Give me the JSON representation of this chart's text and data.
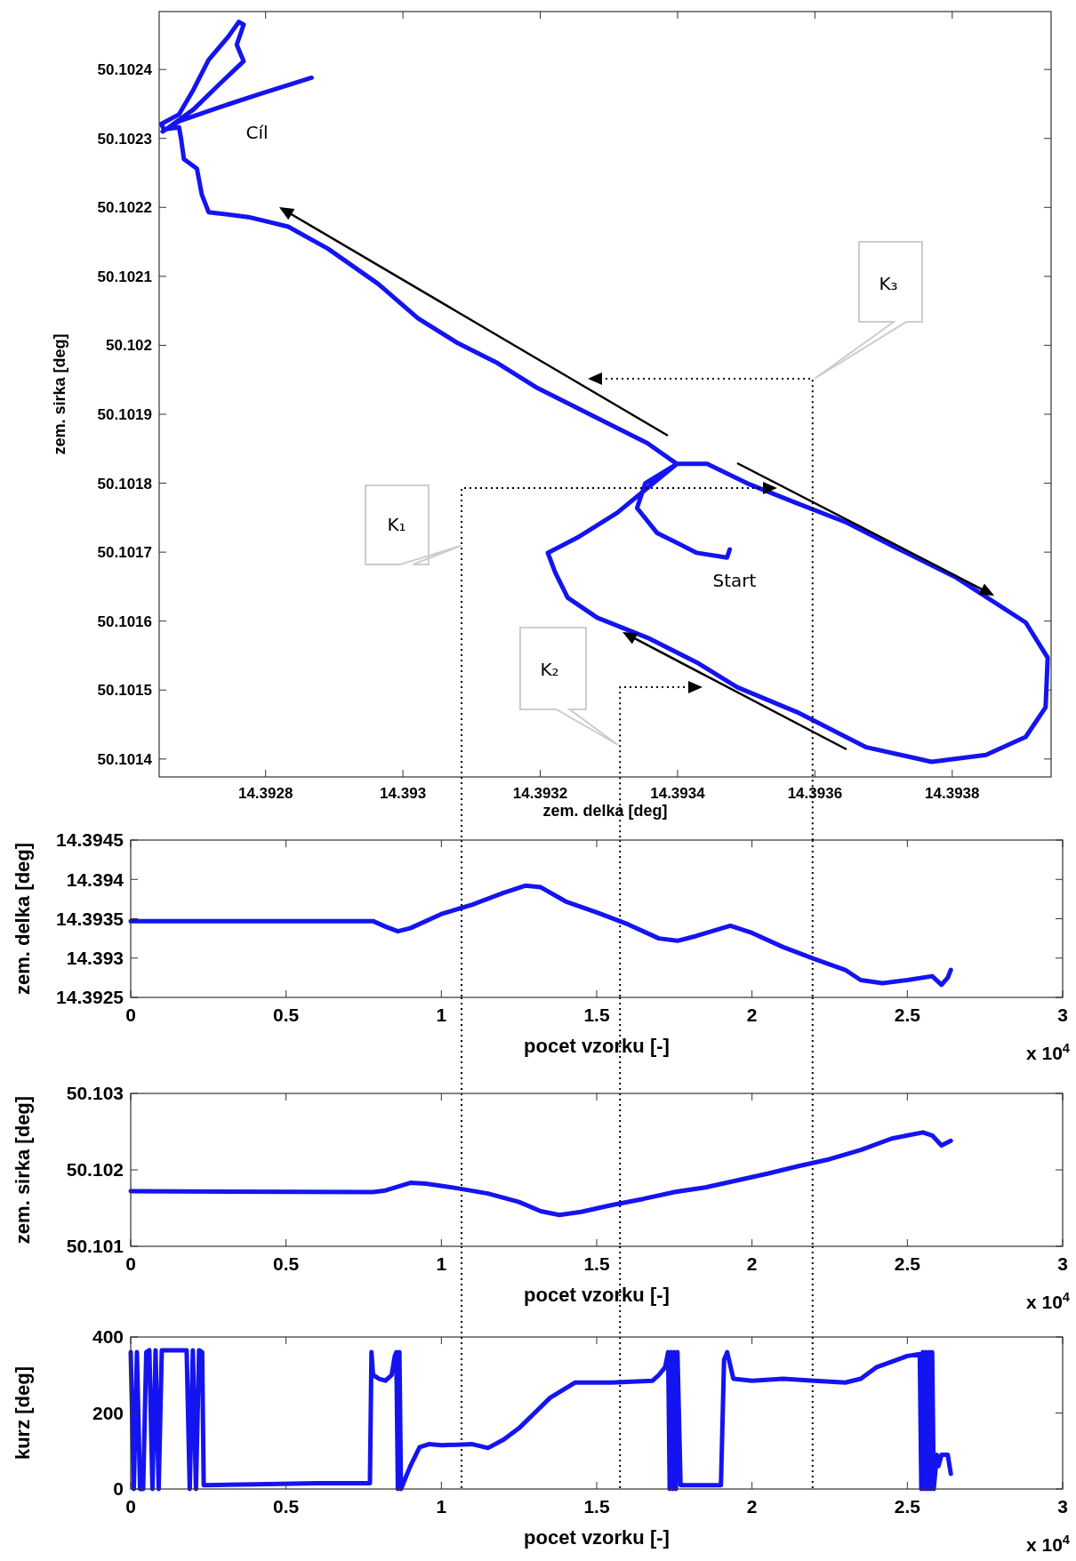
{
  "chart_data": [
    {
      "type": "line",
      "xlabel": "zem. delka [deg]",
      "ylabel": "zem. sirka [deg]",
      "xlim": [
        14.392645,
        14.393944
      ],
      "ylim": [
        50.101374,
        50.102484
      ],
      "xticks": [
        14.3928,
        14.393,
        14.3932,
        14.3934,
        14.3936,
        14.3938
      ],
      "yticks": [
        50.1014,
        50.1015,
        50.1016,
        50.1017,
        50.1018,
        50.1019,
        50.102,
        50.1021,
        50.1022,
        50.1023,
        50.1024
      ],
      "series": [
        {
          "color": "#1414f0",
          "x": [
            14.393476,
            14.393472,
            14.393428,
            14.39337,
            14.393341,
            14.393353,
            14.393399,
            14.393443,
            14.393501,
            14.393574,
            14.393646,
            14.393719,
            14.393806,
            14.393907,
            14.393939,
            14.393936,
            14.393907,
            14.393849,
            14.39377,
            14.393675,
            14.393574,
            14.393487,
            14.393428,
            14.393356,
            14.393283,
            14.39324,
            14.393222,
            14.393211,
            14.393254,
            14.393312,
            14.393356,
            14.393399,
            14.393356,
            14.393312,
            14.393254,
            14.393196,
            14.393138,
            14.39308,
            14.393022,
            14.392964,
            14.392891,
            14.392833,
            14.392775,
            14.392717,
            14.392707,
            14.3927,
            14.392681,
            14.392677,
            14.392674,
            14.392652,
            14.392648,
            14.392674,
            14.392695,
            14.392717,
            14.392746,
            14.392761,
            14.392768,
            14.392758,
            14.392768,
            14.392732,
            14.392695,
            14.392659,
            14.39265,
            14.392674,
            14.392732,
            14.39279,
            14.392867
          ],
          "values": [
            50.101704,
            50.101692,
            50.101699,
            50.101728,
            50.101764,
            50.1018,
            50.101828,
            50.101828,
            50.1018,
            50.101771,
            50.101743,
            50.101706,
            50.101663,
            50.101598,
            50.101547,
            50.101475,
            50.101432,
            50.101406,
            50.101396,
            50.101417,
            50.101468,
            50.101504,
            50.10154,
            50.101576,
            50.101605,
            50.101634,
            50.10167,
            50.101699,
            50.101721,
            50.101757,
            50.101793,
            50.101828,
            50.101858,
            50.10188,
            50.101909,
            50.101938,
            50.101974,
            50.102003,
            50.102039,
            50.102089,
            50.10214,
            50.102172,
            50.102186,
            50.102193,
            50.102219,
            50.102256,
            50.10227,
            50.102299,
            50.102316,
            50.102313,
            50.102321,
            50.102335,
            50.102371,
            50.102414,
            50.102448,
            50.102469,
            50.102465,
            50.102436,
            50.102412,
            50.102378,
            50.102342,
            50.102316,
            50.10231,
            50.102325,
            50.102345,
            50.102364,
            50.102388
          ]
        }
      ],
      "annotations": [
        "Cíl",
        "Start",
        "K₁",
        "K₂",
        "K₃"
      ]
    },
    {
      "type": "line",
      "xlabel": "pocet vzorku [-]",
      "ylabel": "zem. delka [deg]",
      "xlim": [
        0,
        3
      ],
      "ylim": [
        14.3925,
        14.3945
      ],
      "xticks": [
        0,
        0.5,
        1,
        1.5,
        2,
        2.5,
        3
      ],
      "yticks": [
        14.3925,
        14.393,
        14.3935,
        14.394,
        14.3945
      ],
      "series": [
        {
          "color": "#1414f0",
          "x": [
            0,
            0.78,
            0.82,
            0.86,
            0.9,
            1,
            1.1,
            1.2,
            1.27,
            1.32,
            1.4,
            1.5,
            1.6,
            1.7,
            1.76,
            1.82,
            1.93,
            2,
            2.1,
            2.2,
            2.3,
            2.35,
            2.42,
            2.5,
            2.58,
            2.61,
            2.63,
            2.64
          ],
          "values": [
            14.39347,
            14.39347,
            14.3934,
            14.39334,
            14.39338,
            14.39356,
            14.39368,
            14.39383,
            14.39392,
            14.3939,
            14.39372,
            14.39358,
            14.39343,
            14.39325,
            14.39322,
            14.39328,
            14.39341,
            14.39332,
            14.39314,
            14.39299,
            14.39285,
            14.39272,
            14.39268,
            14.39272,
            14.39277,
            14.39266,
            14.39275,
            14.39285
          ]
        }
      ],
      "ref_lines": [
        {
          "axis": "x",
          "value": 1.065,
          "line_style": "dotted",
          "color": "#000000"
        },
        {
          "axis": "x",
          "value": 1.575,
          "line_style": "dotted",
          "color": "#000000"
        },
        {
          "axis": "x",
          "value": 2.195,
          "line_style": "dotted",
          "color": "#000000"
        }
      ],
      "annotations": [
        "x 10$^{4}$"
      ]
    },
    {
      "type": "line",
      "xlabel": "pocet vzorku [-]",
      "ylabel": "zem. sirka [deg]",
      "xlim": [
        0,
        3
      ],
      "ylim": [
        50.101,
        50.103
      ],
      "xticks": [
        0,
        0.5,
        1,
        1.5,
        2,
        2.5,
        3
      ],
      "yticks": [
        50.101,
        50.102,
        50.103
      ],
      "series": [
        {
          "color": "#1414f0",
          "x": [
            0,
            0.78,
            0.82,
            0.9,
            0.95,
            1.05,
            1.15,
            1.25,
            1.32,
            1.38,
            1.45,
            1.55,
            1.65,
            1.75,
            1.85,
            1.95,
            2.05,
            2.15,
            2.25,
            2.35,
            2.45,
            2.55,
            2.58,
            2.61,
            2.64
          ],
          "values": [
            50.10172,
            50.10171,
            50.10173,
            50.10183,
            50.10182,
            50.10176,
            50.10169,
            50.10158,
            50.10146,
            50.10141,
            50.10145,
            50.10154,
            50.10162,
            50.10171,
            50.10177,
            50.10186,
            50.10195,
            50.10205,
            50.10214,
            50.10226,
            50.10241,
            50.10249,
            50.10245,
            50.10232,
            50.10238
          ]
        }
      ],
      "ref_lines": [
        {
          "axis": "x",
          "value": 1.065,
          "line_style": "dotted",
          "color": "#000000"
        },
        {
          "axis": "x",
          "value": 1.575,
          "line_style": "dotted",
          "color": "#000000"
        },
        {
          "axis": "x",
          "value": 2.195,
          "line_style": "dotted",
          "color": "#000000"
        }
      ],
      "annotations": [
        "x 10$^{4}$"
      ]
    },
    {
      "type": "line",
      "xlabel": "pocet vzorku [-]",
      "ylabel": "kurz [deg]",
      "xlim": [
        0,
        3
      ],
      "ylim": [
        0,
        400
      ],
      "xticks": [
        0,
        0.5,
        1,
        1.5,
        2,
        2.5,
        3
      ],
      "yticks": [
        0,
        200,
        400
      ],
      "series": [
        {
          "color": "#1414f0",
          "x": [
            0,
            0.01,
            0.02,
            0.03,
            0.04,
            0.05,
            0.06,
            0.07,
            0.08,
            0.09,
            0.1,
            0.11,
            0.18,
            0.19,
            0.2,
            0.21,
            0.22,
            0.23,
            0.235,
            0.4,
            0.6,
            0.77,
            0.775,
            0.78,
            0.8,
            0.82,
            0.84,
            0.85,
            0.855,
            0.86,
            0.865,
            0.87,
            0.88,
            0.9,
            0.93,
            0.96,
            1,
            1.1,
            1.15,
            1.2,
            1.25,
            1.3,
            1.35,
            1.43,
            1.55,
            1.68,
            1.7,
            1.72,
            1.73,
            1.735,
            1.74,
            1.745,
            1.75,
            1.755,
            1.76,
            1.77,
            1.9,
            1.91,
            1.92,
            1.94,
            2,
            2.1,
            2.2,
            2.3,
            2.35,
            2.4,
            2.5,
            2.54,
            2.545,
            2.55,
            2.555,
            2.56,
            2.565,
            2.57,
            2.575,
            2.58,
            2.585,
            2.595,
            2.6,
            2.61,
            2.63,
            2.64
          ],
          "values": [
            360,
            0,
            360,
            0,
            0,
            360,
            365,
            0,
            365,
            0,
            365,
            365,
            365,
            0,
            365,
            0,
            365,
            360,
            10,
            12,
            15,
            15,
            360,
            300,
            290,
            285,
            300,
            350,
            360,
            0,
            360,
            0,
            20,
            60,
            110,
            118,
            115,
            118,
            108,
            130,
            160,
            200,
            240,
            280,
            280,
            285,
            300,
            320,
            360,
            0,
            360,
            0,
            360,
            0,
            360,
            10,
            10,
            340,
            360,
            290,
            285,
            290,
            285,
            280,
            290,
            320,
            350,
            355,
            0,
            360,
            0,
            360,
            0,
            360,
            0,
            360,
            0,
            90,
            60,
            90,
            90,
            40
          ]
        }
      ],
      "ref_lines": [
        {
          "axis": "x",
          "value": 1.065,
          "line_style": "dotted",
          "color": "#000000"
        },
        {
          "axis": "x",
          "value": 1.575,
          "line_style": "dotted",
          "color": "#000000"
        },
        {
          "axis": "x",
          "value": 2.195,
          "line_style": "dotted",
          "color": "#000000"
        }
      ],
      "annotations": [
        "x 10$^{4}$"
      ]
    }
  ]
}
